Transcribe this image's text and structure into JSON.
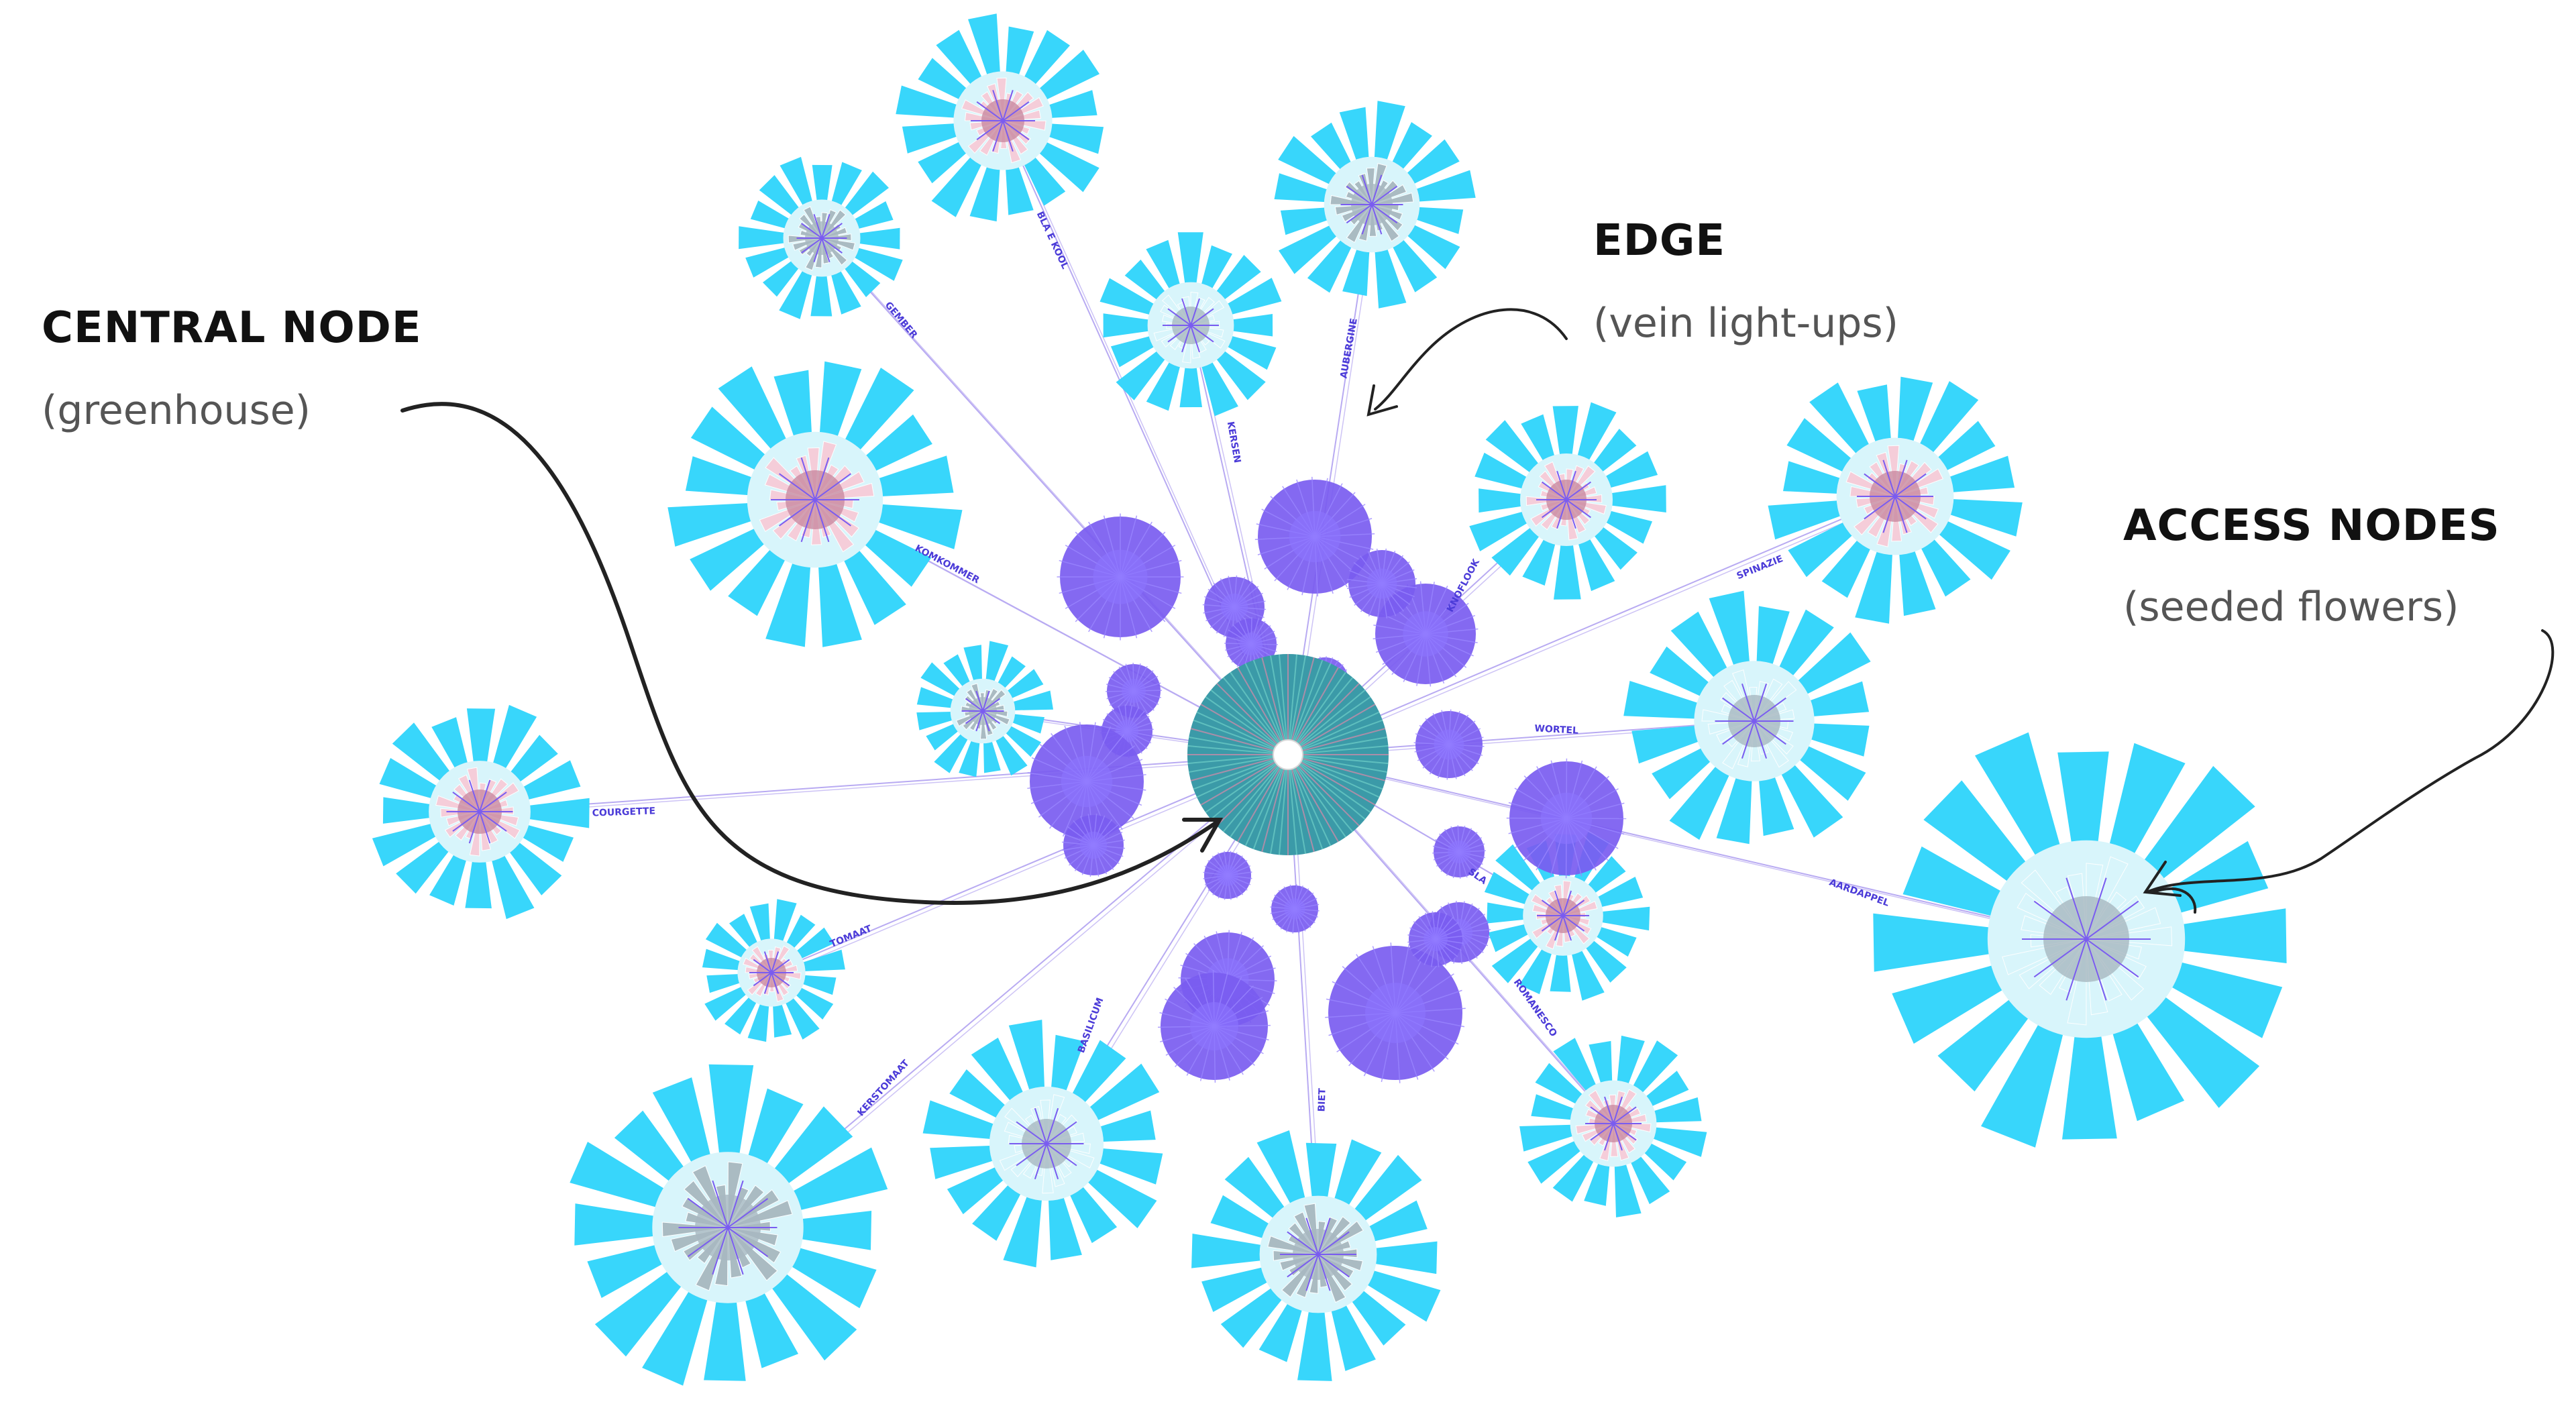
{
  "annotations": {
    "central": {
      "title": "CENTRAL NODE",
      "subtitle": "(greenhouse)"
    },
    "edge": {
      "title": "EDGE",
      "subtitle": "(vein light-ups)"
    },
    "access": {
      "title": "ACCESS NODES",
      "subtitle": "(seeded flowers)"
    }
  },
  "colors": {
    "petal": "#38d6fb",
    "petal_light": "#d8f5fb",
    "pink": "#f7cbd8",
    "rose": "#c98aa0",
    "gray": "#a8b8c0",
    "purple": "#7a5cf0",
    "center": "#3b9aa8",
    "edge_line": "#b8aaf2",
    "arrow": "#222222"
  },
  "flowers": [
    {
      "id": "wortel",
      "label": "WORTEL",
      "core": "light"
    },
    {
      "id": "aardappel",
      "label": "AARDAPPEL",
      "core": "light"
    },
    {
      "id": "spinazie",
      "label": "SPINAZIE",
      "core": "pink"
    },
    {
      "id": "knoflook",
      "label": "KNOFLOOK",
      "core": "pink"
    },
    {
      "id": "aubergine",
      "label": "AUBERGINE",
      "core": "gray"
    },
    {
      "id": "kersen",
      "label": "KERSEN",
      "core": "light"
    },
    {
      "id": "blauwe-kool",
      "label": "BLA E KOOL",
      "core": "pink"
    },
    {
      "id": "gember",
      "label": "GEMBER",
      "core": "gray"
    },
    {
      "id": "komkommer",
      "label": "KOMKOMMER",
      "core": "pink"
    },
    {
      "id": "courgette",
      "label": "COURGETTE",
      "core": "pink"
    },
    {
      "id": "tomaat",
      "label": "TOMAAT",
      "core": "pink"
    },
    {
      "id": "kerstomaat",
      "label": "KERSTOMAAT",
      "core": "gray"
    },
    {
      "id": "basilicum",
      "label": "BASILICUM",
      "core": "light"
    },
    {
      "id": "biet",
      "label": "BIET",
      "core": "gray"
    },
    {
      "id": "romanesco",
      "label": "ROMANESCO",
      "core": "pink"
    },
    {
      "id": "sla",
      "label": "SLA",
      "core": "pink"
    },
    {
      "id": "rucola",
      "label": "",
      "core": "gray"
    }
  ]
}
